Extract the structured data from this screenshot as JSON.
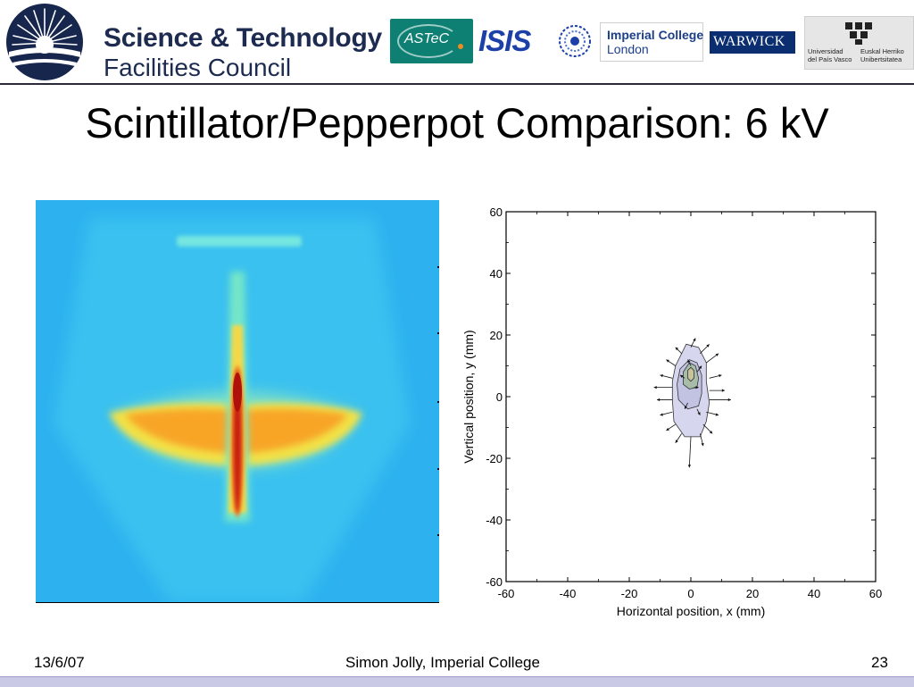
{
  "header": {
    "stfc": {
      "line1": "Science & Technology",
      "line2": "Facilities Council"
    },
    "partner_logos": {
      "astec": "ASTeC",
      "isis": "ISIS",
      "imperial": {
        "line1": "Imperial College",
        "line2": "London"
      },
      "warwick": "WARWICK",
      "ehu": {
        "left_line1": "Universidad",
        "left_line2": "del País Vasco",
        "right_line1": "Euskal Herriko",
        "right_line2": "Unibertsitatea"
      }
    }
  },
  "slide": {
    "title": "Scintillator/Pepperpot Comparison: 6 kV"
  },
  "chart_data": {
    "type": "contour",
    "xlabel": "Horizontal position, x (mm)",
    "ylabel": "Vertical position, y (mm)",
    "xlim": [
      -60,
      60
    ],
    "ylim": [
      -60,
      60
    ],
    "xticks": [
      -60,
      -40,
      -20,
      0,
      20,
      40,
      60
    ],
    "yticks": [
      -60,
      -40,
      -20,
      0,
      20,
      40,
      60
    ],
    "contours": [
      {
        "level": "outer",
        "color": "#d6d6ee",
        "points": [
          [
            -1.5,
            17
          ],
          [
            2.5,
            16
          ],
          [
            5,
            11
          ],
          [
            5,
            5
          ],
          [
            6,
            -2
          ],
          [
            5,
            -8
          ],
          [
            3,
            -13
          ],
          [
            -2,
            -13
          ],
          [
            -5.5,
            -8
          ],
          [
            -6,
            -1
          ],
          [
            -6,
            5
          ],
          [
            -5,
            10
          ]
        ]
      },
      {
        "level": "mid",
        "color": "#c2c2e2",
        "points": [
          [
            -0.5,
            12
          ],
          [
            2,
            11
          ],
          [
            3.5,
            7
          ],
          [
            3.5,
            1
          ],
          [
            2.5,
            -3
          ],
          [
            -1,
            -4
          ],
          [
            -4,
            -1
          ],
          [
            -4.5,
            4
          ],
          [
            -3.5,
            9
          ]
        ]
      },
      {
        "level": "inner",
        "color": "#a7bda9",
        "points": [
          [
            -0.5,
            11
          ],
          [
            1.5,
            10
          ],
          [
            2.5,
            6
          ],
          [
            2,
            3
          ],
          [
            -0.5,
            2.5
          ],
          [
            -2.5,
            4
          ],
          [
            -2.5,
            8
          ]
        ]
      },
      {
        "level": "core",
        "color": "#c7c39a",
        "points": [
          [
            0,
            9.5
          ],
          [
            1,
            8.5
          ],
          [
            1,
            6
          ],
          [
            0,
            5
          ],
          [
            -1,
            6
          ],
          [
            -1,
            8.5
          ]
        ]
      }
    ],
    "arrows": [
      [
        [
          0,
          16
        ],
        [
          1.5,
          19
        ]
      ],
      [
        [
          3,
          14
        ],
        [
          6,
          17
        ]
      ],
      [
        [
          5,
          11
        ],
        [
          9,
          14
        ]
      ],
      [
        [
          6,
          6
        ],
        [
          10,
          7
        ]
      ],
      [
        [
          6,
          2
        ],
        [
          11,
          2
        ]
      ],
      [
        [
          6,
          -1
        ],
        [
          13,
          -1
        ]
      ],
      [
        [
          5,
          -5
        ],
        [
          9,
          -6
        ]
      ],
      [
        [
          4,
          -9
        ],
        [
          7,
          -12
        ]
      ],
      [
        [
          3,
          -12
        ],
        [
          4,
          -16
        ]
      ],
      [
        [
          0,
          -13
        ],
        [
          -0.5,
          -23
        ]
      ],
      [
        [
          -3,
          -12
        ],
        [
          -5,
          -15
        ]
      ],
      [
        [
          -5,
          -9
        ],
        [
          -8,
          -11
        ]
      ],
      [
        [
          -6,
          -5
        ],
        [
          -10,
          -6
        ]
      ],
      [
        [
          -6,
          -1
        ],
        [
          -11,
          -1
        ]
      ],
      [
        [
          -6,
          3
        ],
        [
          -12,
          3
        ]
      ],
      [
        [
          -6,
          6
        ],
        [
          -10,
          7
        ]
      ],
      [
        [
          -5,
          10
        ],
        [
          -8,
          12
        ]
      ],
      [
        [
          -3,
          14
        ],
        [
          -5,
          16
        ]
      ],
      [
        [
          0,
          10
        ],
        [
          -1,
          12
        ]
      ],
      [
        [
          2,
          8
        ],
        [
          3.5,
          10
        ]
      ],
      [
        [
          -2,
          6
        ],
        [
          -3.5,
          7
        ]
      ],
      [
        [
          1,
          3
        ],
        [
          2.5,
          3
        ]
      ],
      [
        [
          -1,
          -2
        ],
        [
          -2,
          -4
        ]
      ],
      [
        [
          2,
          -4
        ],
        [
          3,
          -6
        ]
      ]
    ]
  },
  "footer": {
    "date": "13/6/07",
    "author": "Simon Jolly, Imperial College",
    "page": "23"
  }
}
